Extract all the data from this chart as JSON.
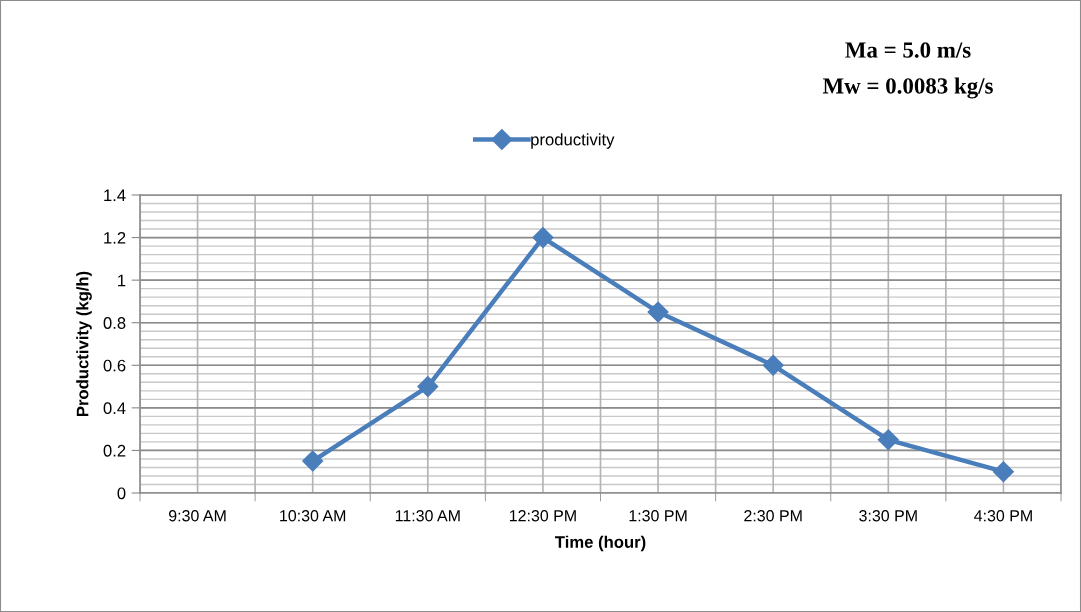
{
  "chart_data": {
    "type": "line",
    "xlabel": "Time (hour)",
    "ylabel": "Productivity (kg/h)",
    "annotations": [
      "Ma = 5.0 m/s",
      "Mw = 0.0083 kg/s"
    ],
    "categories": [
      "9:30 AM",
      "10:30 AM",
      "11:30 AM",
      "12:30 PM",
      "1:30 PM",
      "2:30 PM",
      "3:30 PM",
      "4:30 PM"
    ],
    "series": [
      {
        "name": "productivity",
        "color": "#4a7ebb",
        "values": [
          null,
          0.15,
          0.5,
          1.2,
          0.85,
          0.6,
          0.25,
          0.1
        ]
      }
    ],
    "ylim": [
      0,
      1.4
    ],
    "yticks": [
      0,
      0.2,
      0.4,
      0.6,
      0.8,
      1,
      1.2,
      1.4
    ],
    "grid": true,
    "legend": "top",
    "marker": "diamond",
    "line_style": "solid"
  }
}
